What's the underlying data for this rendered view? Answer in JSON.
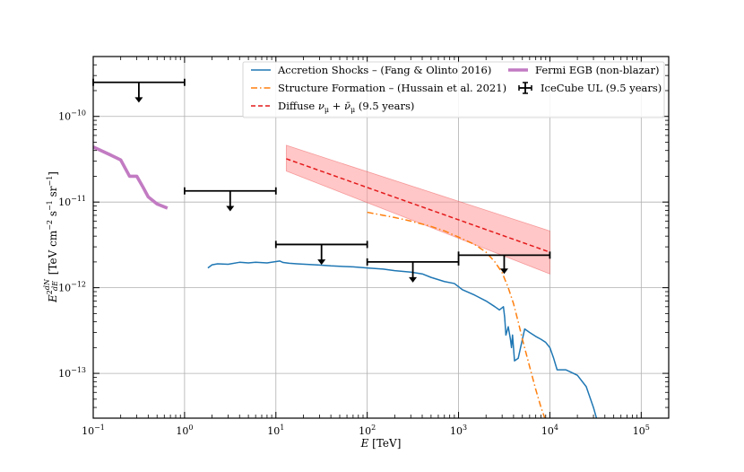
{
  "chart_data": {
    "type": "line",
    "xlabel": "E [TeV]",
    "ylabel": "E^2 dN/dE [TeV cm^-2 s^-1 sr^-1]",
    "xscale": "log",
    "yscale": "log",
    "xlim": [
      0.1,
      200000
    ],
    "ylim": [
      3e-14,
      5e-10
    ],
    "grid": true,
    "legend_position": "top-right",
    "x_ticks": [
      {
        "value": 0.1,
        "base": "10",
        "exp": "−1"
      },
      {
        "value": 1,
        "base": "10",
        "exp": "0"
      },
      {
        "value": 10,
        "base": "10",
        "exp": "1"
      },
      {
        "value": 100,
        "base": "10",
        "exp": "2"
      },
      {
        "value": 1000,
        "base": "10",
        "exp": "3"
      },
      {
        "value": 10000,
        "base": "10",
        "exp": "4"
      },
      {
        "value": 100000,
        "base": "10",
        "exp": "5"
      }
    ],
    "y_ticks": [
      {
        "value": 1e-13,
        "base": "10",
        "exp": "−13"
      },
      {
        "value": 1e-12,
        "base": "10",
        "exp": "−12"
      },
      {
        "value": 1e-11,
        "base": "10",
        "exp": "−11"
      },
      {
        "value": 1e-10,
        "base": "10",
        "exp": "−10"
      }
    ],
    "series": [
      {
        "name": "Accretion Shocks – (Fang & Olinto 2016)",
        "color": "#1f77b4",
        "style": "solid",
        "x": [
          1.8,
          2.0,
          2.3,
          3.0,
          4.0,
          5.0,
          6.0,
          8.0,
          11.0,
          12.0,
          14.0,
          17.0,
          22.0,
          30.0,
          40.0,
          50.0,
          70.0,
          100.0,
          150.0,
          200.0,
          300.0,
          400.0,
          500.0,
          700.0,
          900.0,
          1100.0,
          1500.0,
          2000.0,
          2500.0,
          2800.0,
          3100.0,
          3200.0,
          3300.0,
          3500.0,
          3700.0,
          3800.0,
          3900.0,
          4100.0,
          4500.0,
          5000.0,
          5300.0,
          6000.0,
          7000.0,
          8000.0,
          9000.0,
          10000.0,
          11000.0,
          12000.0,
          15000.0,
          20000.0,
          25000.0,
          30000.0,
          33000.0
        ],
        "y": [
          1.7e-12,
          1.85e-12,
          1.9e-12,
          1.88e-12,
          1.98e-12,
          1.95e-12,
          1.98e-12,
          1.95e-12,
          2.05e-12,
          1.97e-12,
          1.93e-12,
          1.9e-12,
          1.87e-12,
          1.84e-12,
          1.8e-12,
          1.78e-12,
          1.75e-12,
          1.7e-12,
          1.65e-12,
          1.58e-12,
          1.52e-12,
          1.45e-12,
          1.32e-12,
          1.18e-12,
          1.12e-12,
          9.5e-13,
          8.2e-13,
          7e-13,
          6e-13,
          5.5e-13,
          6e-13,
          4.5e-13,
          2.8e-13,
          3.5e-13,
          2.5e-13,
          2e-13,
          2.8e-13,
          1.4e-13,
          1.5e-13,
          2.5e-13,
          3.3e-13,
          3e-13,
          2.7e-13,
          2.5e-13,
          2.3e-13,
          2e-13,
          1.5e-13,
          1.1e-13,
          1.1e-13,
          9.5e-14,
          7e-14,
          4e-14,
          2.8e-14
        ]
      },
      {
        "name": "Structure Formation – (Hussain et al. 2021)",
        "color": "#ff7f0e",
        "style": "dashdot",
        "x": [
          100.0,
          150.0,
          200.0,
          300.0,
          500.0,
          700.0,
          1000.0,
          1500.0,
          2000.0,
          2500.0,
          3000.0,
          3500.0,
          4000.0,
          4500.0,
          5000.0,
          6000.0,
          7000.0,
          8000.0,
          9000.0,
          10000.0
        ],
        "y": [
          7.6e-12,
          7e-12,
          6.6e-12,
          6e-12,
          5.2e-12,
          4.6e-12,
          3.9e-12,
          3.2e-12,
          2.6e-12,
          2e-12,
          1.5e-12,
          1e-12,
          6.5e-13,
          4e-13,
          2.5e-13,
          1.2e-13,
          6.5e-14,
          4e-14,
          2.8e-14,
          2e-14
        ]
      },
      {
        "name": "Diffuse νμ + ν̄μ (9.5 years)",
        "color": "#e41a1c",
        "style": "dashed",
        "x": [
          13.0,
          10000.0
        ],
        "y": [
          3.2e-11,
          2.6e-12
        ],
        "band_upper": [
          4.6e-11,
          4.6e-12
        ],
        "band_lower": [
          2.3e-11,
          1.45e-12
        ],
        "band_color": "#ff9999"
      },
      {
        "name": "Fermi EGB (non-blazar)",
        "color": "#c27bc2",
        "style": "solid-thick",
        "x": [
          0.1,
          0.15,
          0.2,
          0.25,
          0.3,
          0.35,
          0.4,
          0.5,
          0.65
        ],
        "y": [
          4.4e-11,
          3.6e-11,
          3.1e-11,
          2e-11,
          2e-11,
          1.5e-11,
          1.15e-11,
          9.5e-12,
          8.5e-12
        ]
      }
    ],
    "upper_limits": {
      "name": "IceCube UL (9.5 years)",
      "color": "#000000",
      "points": [
        {
          "x_lo": 0.1,
          "x_hi": 1.0,
          "x": 0.316,
          "y": 2.5e-10,
          "y_arrow": 1.45e-10
        },
        {
          "x_lo": 1.0,
          "x_hi": 10.0,
          "x": 3.16,
          "y": 1.35e-11,
          "y_arrow": 7.8e-12
        },
        {
          "x_lo": 10.0,
          "x_hi": 100.0,
          "x": 31.6,
          "y": 3.2e-12,
          "y_arrow": 1.85e-12
        },
        {
          "x_lo": 100.0,
          "x_hi": 1000.0,
          "x": 316.0,
          "y": 2e-12,
          "y_arrow": 1.15e-12
        },
        {
          "x_lo": 1000.0,
          "x_hi": 10000.0,
          "x": 3160.0,
          "y": 2.4e-12,
          "y_arrow": 1.45e-12
        }
      ]
    }
  }
}
